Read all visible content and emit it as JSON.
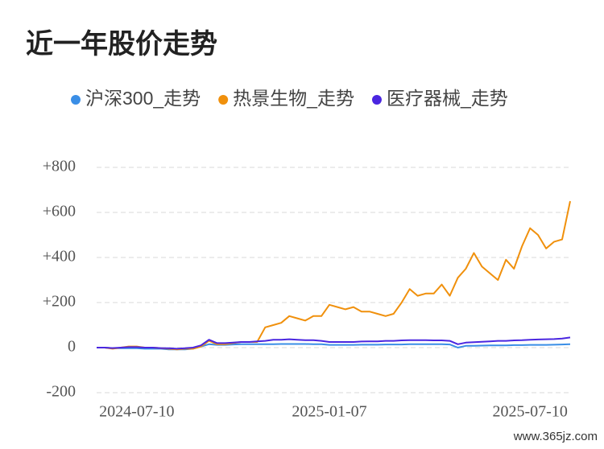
{
  "chart_data": {
    "type": "line",
    "title": "近一年股价走势",
    "watermark": "www.365jz.com",
    "categories": [
      null,
      null,
      null,
      null,
      null,
      "2024-07-10",
      null,
      null,
      null,
      null,
      null,
      null,
      null,
      null,
      null,
      null,
      null,
      null,
      null,
      null,
      null,
      null,
      null,
      null,
      null,
      null,
      null,
      null,
      null,
      "2025-01-07",
      null,
      null,
      null,
      null,
      null,
      null,
      null,
      null,
      null,
      null,
      null,
      null,
      null,
      null,
      null,
      null,
      null,
      null,
      null,
      null,
      null,
      null,
      null,
      null,
      "2025-07-10",
      null,
      null,
      null,
      null,
      null
    ],
    "series": [
      {
        "name": "沪深300_走势",
        "color": "#3a8ee6",
        "values": [
          0,
          0,
          -3,
          -3,
          -3,
          -3,
          -5,
          -5,
          -5,
          -8,
          -8,
          -8,
          -5,
          5,
          15,
          12,
          12,
          14,
          15,
          15,
          15,
          15,
          15,
          16,
          16,
          16,
          16,
          15,
          15,
          12,
          12,
          12,
          12,
          13,
          13,
          13,
          14,
          14,
          14,
          15,
          15,
          15,
          15,
          15,
          14,
          0,
          8,
          8,
          9,
          10,
          10,
          10,
          11,
          11,
          12,
          12,
          12,
          13,
          14,
          15
        ]
      },
      {
        "name": "热景生物_走势",
        "color": "#f0900c",
        "values": [
          0,
          0,
          -5,
          0,
          5,
          5,
          0,
          0,
          -3,
          -5,
          -8,
          -5,
          -5,
          5,
          30,
          15,
          15,
          20,
          25,
          25,
          25,
          90,
          100,
          110,
          140,
          130,
          120,
          140,
          140,
          190,
          180,
          170,
          180,
          160,
          160,
          150,
          140,
          150,
          200,
          260,
          230,
          240,
          240,
          280,
          230,
          310,
          350,
          420,
          360,
          330,
          300,
          390,
          350,
          450,
          530,
          500,
          440,
          470,
          480,
          650
        ]
      },
      {
        "name": "医疗器械_走势",
        "color": "#4a26e0",
        "values": [
          0,
          0,
          -2,
          0,
          2,
          2,
          0,
          0,
          -2,
          -3,
          -5,
          -3,
          0,
          10,
          35,
          20,
          20,
          22,
          25,
          25,
          28,
          30,
          35,
          35,
          37,
          35,
          33,
          33,
          30,
          25,
          25,
          25,
          25,
          27,
          28,
          28,
          30,
          30,
          32,
          33,
          33,
          33,
          32,
          32,
          30,
          15,
          22,
          24,
          26,
          28,
          30,
          30,
          32,
          33,
          35,
          36,
          37,
          38,
          40,
          45
        ]
      }
    ],
    "ylim": [
      -200,
      800
    ],
    "yticks": [
      -200,
      0,
      {
        "value": 200,
        "label": "+200"
      },
      {
        "value": 400,
        "label": "+400"
      },
      {
        "value": 600,
        "label": "+600"
      },
      {
        "value": 800,
        "label": "+800"
      }
    ],
    "grid": true
  }
}
